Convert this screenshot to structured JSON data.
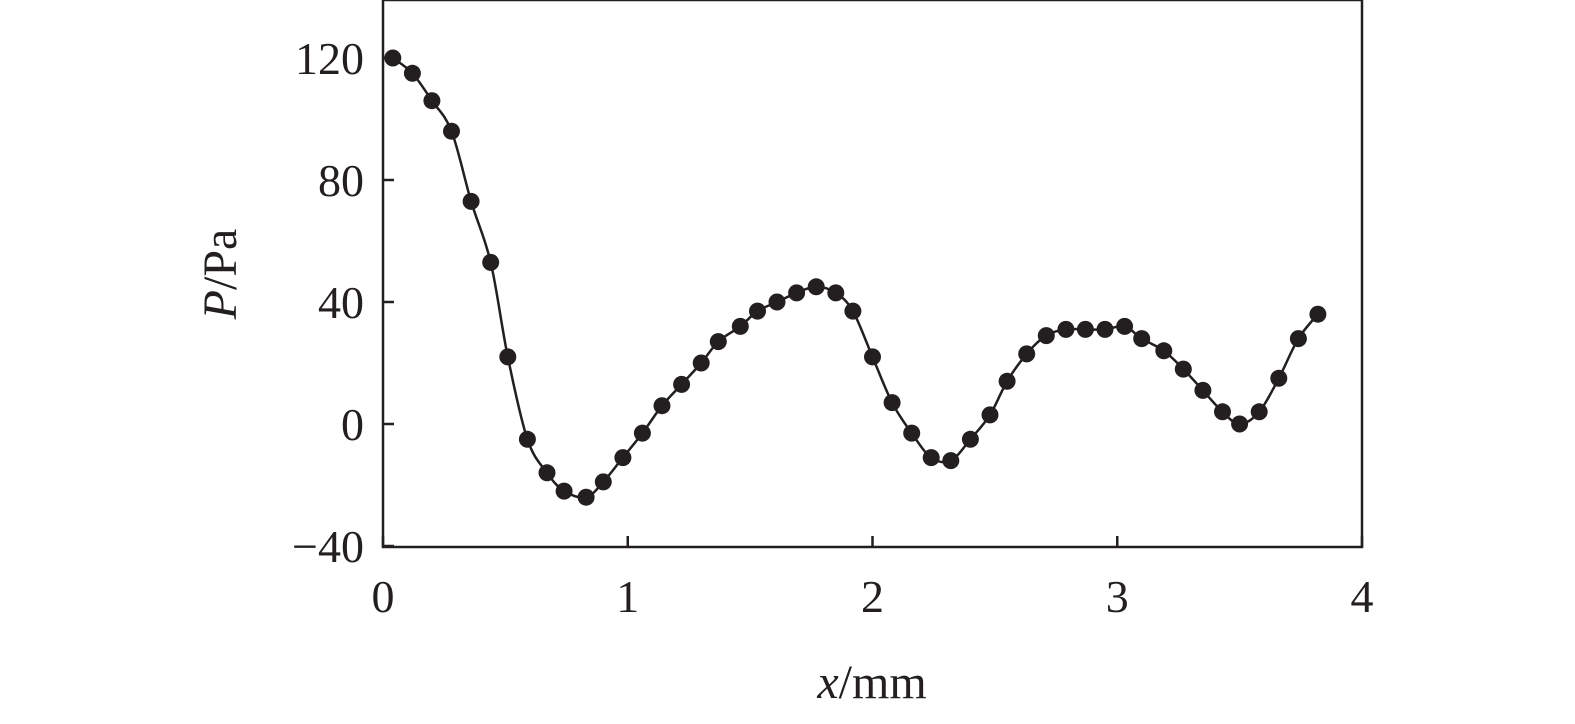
{
  "chart_data": {
    "type": "line",
    "title": "",
    "xlabel": {
      "var": "x",
      "unit": "/mm"
    },
    "ylabel": {
      "var": "P",
      "unit": "/Pa"
    },
    "xlim": [
      0,
      4
    ],
    "ylim": [
      -40,
      140
    ],
    "xticks": [
      0,
      1,
      2,
      3,
      4
    ],
    "xtick_labels": [
      "0",
      "1",
      "2",
      "3",
      "4"
    ],
    "yticks": [
      -40,
      0,
      40,
      80,
      120
    ],
    "ytick_labels": [
      "−40",
      "0",
      "40",
      "80",
      "120"
    ],
    "grid": false,
    "legend": "none",
    "colors": {
      "line": "#231f20",
      "marker": "#231f20",
      "frame": "#231f20"
    },
    "series": [
      {
        "marker": "filled-circle",
        "x": [
          0.04,
          0.12,
          0.2,
          0.28,
          0.36,
          0.44,
          0.51,
          0.59,
          0.67,
          0.74,
          0.83,
          0.9,
          0.98,
          1.06,
          1.14,
          1.22,
          1.3,
          1.37,
          1.46,
          1.53,
          1.61,
          1.69,
          1.77,
          1.85,
          1.92,
          2.0,
          2.08,
          2.16,
          2.24,
          2.32,
          2.4,
          2.48,
          2.55,
          2.63,
          2.71,
          2.79,
          2.87,
          2.95,
          3.03,
          3.1,
          3.19,
          3.27,
          3.35,
          3.43,
          3.5,
          3.58,
          3.66,
          3.74,
          3.82
        ],
        "y": [
          120,
          115,
          106,
          96,
          73,
          53,
          22,
          -5,
          -16,
          -22,
          -24,
          -19,
          -11,
          -3,
          6,
          13,
          20,
          27,
          32,
          37,
          40,
          43,
          45,
          43,
          37,
          22,
          7,
          -3,
          -11,
          -12,
          -5,
          3,
          14,
          23,
          29,
          31,
          31,
          31,
          32,
          28,
          24,
          18,
          11,
          4,
          0,
          4,
          15,
          28,
          36
        ]
      }
    ]
  }
}
